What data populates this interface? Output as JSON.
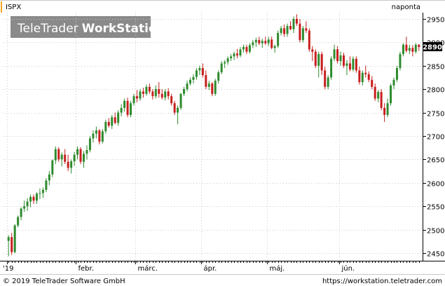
{
  "chart_data": {
    "type": "candlestick",
    "symbol": "ISPX",
    "period": "naponta",
    "watermark": "TeleTrader WorkStation",
    "watermark_parts": [
      "TeleTrader",
      "WorkStation"
    ],
    "last_value": "2890",
    "ylim": [
      2430,
      2980
    ],
    "y_ticks": [
      2450,
      2500,
      2550,
      2600,
      2650,
      2700,
      2750,
      2800,
      2850,
      2900,
      2950
    ],
    "x_tick_labels": [
      "'19",
      "febr.",
      "márc.",
      "ápr.",
      "máj.",
      "jún."
    ],
    "grid": true,
    "colors": {
      "up": "#2e8b2e",
      "down": "#c81e1e",
      "accent": "#f5a623",
      "period_text": "#2e8b2e",
      "symbol_text": "#2e8b2e"
    },
    "candles": [
      [
        2476,
        2488,
        2443,
        2484
      ],
      [
        2484,
        2493,
        2446,
        2452
      ],
      [
        2452,
        2512,
        2450,
        2509
      ],
      [
        2509,
        2530,
        2505,
        2527
      ],
      [
        2527,
        2548,
        2520,
        2545
      ],
      [
        2545,
        2562,
        2538,
        2550
      ],
      [
        2550,
        2567,
        2540,
        2560
      ],
      [
        2560,
        2575,
        2548,
        2570
      ],
      [
        2570,
        2575,
        2555,
        2562
      ],
      [
        2562,
        2580,
        2555,
        2577
      ],
      [
        2577,
        2588,
        2565,
        2578
      ],
      [
        2578,
        2590,
        2568,
        2585
      ],
      [
        2585,
        2610,
        2580,
        2605
      ],
      [
        2605,
        2625,
        2595,
        2618
      ],
      [
        2618,
        2650,
        2612,
        2648
      ],
      [
        2648,
        2678,
        2640,
        2672
      ],
      [
        2672,
        2676,
        2645,
        2650
      ],
      [
        2650,
        2665,
        2635,
        2660
      ],
      [
        2660,
        2672,
        2640,
        2645
      ],
      [
        2645,
        2660,
        2625,
        2632
      ],
      [
        2632,
        2650,
        2620,
        2646
      ],
      [
        2646,
        2666,
        2636,
        2660
      ],
      [
        2660,
        2678,
        2650,
        2672
      ],
      [
        2672,
        2676,
        2640,
        2645
      ],
      [
        2645,
        2668,
        2632,
        2662
      ],
      [
        2662,
        2680,
        2650,
        2670
      ],
      [
        2670,
        2700,
        2665,
        2695
      ],
      [
        2695,
        2712,
        2686,
        2705
      ],
      [
        2705,
        2720,
        2695,
        2712
      ],
      [
        2712,
        2715,
        2682,
        2688
      ],
      [
        2688,
        2715,
        2684,
        2710
      ],
      [
        2710,
        2735,
        2705,
        2730
      ],
      [
        2730,
        2738,
        2718,
        2722
      ],
      [
        2722,
        2745,
        2715,
        2740
      ],
      [
        2740,
        2750,
        2725,
        2728
      ],
      [
        2728,
        2755,
        2722,
        2750
      ],
      [
        2750,
        2768,
        2742,
        2760
      ],
      [
        2760,
        2780,
        2752,
        2775
      ],
      [
        2775,
        2782,
        2740,
        2745
      ],
      [
        2745,
        2775,
        2740,
        2770
      ],
      [
        2770,
        2790,
        2765,
        2785
      ],
      [
        2785,
        2798,
        2772,
        2780
      ],
      [
        2780,
        2800,
        2775,
        2795
      ],
      [
        2795,
        2803,
        2782,
        2790
      ],
      [
        2790,
        2810,
        2786,
        2805
      ],
      [
        2805,
        2812,
        2790,
        2795
      ],
      [
        2795,
        2800,
        2778,
        2785
      ],
      [
        2785,
        2808,
        2780,
        2800
      ],
      [
        2800,
        2815,
        2782,
        2790
      ],
      [
        2790,
        2800,
        2778,
        2782
      ],
      [
        2782,
        2800,
        2776,
        2795
      ],
      [
        2795,
        2802,
        2778,
        2785
      ],
      [
        2785,
        2790,
        2765,
        2770
      ],
      [
        2770,
        2775,
        2745,
        2750
      ],
      [
        2750,
        2765,
        2725,
        2760
      ],
      [
        2760,
        2792,
        2756,
        2790
      ],
      [
        2790,
        2805,
        2785,
        2800
      ],
      [
        2800,
        2818,
        2795,
        2812
      ],
      [
        2812,
        2825,
        2808,
        2820
      ],
      [
        2820,
        2832,
        2812,
        2826
      ],
      [
        2826,
        2845,
        2820,
        2840
      ],
      [
        2840,
        2850,
        2830,
        2845
      ],
      [
        2845,
        2855,
        2825,
        2830
      ],
      [
        2830,
        2840,
        2800,
        2805
      ],
      [
        2805,
        2818,
        2798,
        2812
      ],
      [
        2812,
        2815,
        2785,
        2790
      ],
      [
        2790,
        2822,
        2786,
        2818
      ],
      [
        2818,
        2840,
        2812,
        2836
      ],
      [
        2836,
        2860,
        2832,
        2855
      ],
      [
        2855,
        2862,
        2845,
        2858
      ],
      [
        2858,
        2870,
        2852,
        2866
      ],
      [
        2866,
        2875,
        2860,
        2870
      ],
      [
        2870,
        2880,
        2862,
        2876
      ],
      [
        2876,
        2886,
        2866,
        2872
      ],
      [
        2872,
        2890,
        2868,
        2885
      ],
      [
        2885,
        2895,
        2878,
        2890
      ],
      [
        2890,
        2895,
        2875,
        2880
      ],
      [
        2880,
        2898,
        2876,
        2894
      ],
      [
        2894,
        2905,
        2888,
        2900
      ],
      [
        2900,
        2910,
        2890,
        2905
      ],
      [
        2905,
        2912,
        2894,
        2898
      ],
      [
        2898,
        2908,
        2888,
        2903
      ],
      [
        2903,
        2912,
        2894,
        2898
      ],
      [
        2898,
        2912,
        2892,
        2906
      ],
      [
        2906,
        2912,
        2885,
        2888
      ],
      [
        2888,
        2895,
        2878,
        2892
      ],
      [
        2892,
        2925,
        2888,
        2920
      ],
      [
        2920,
        2935,
        2915,
        2930
      ],
      [
        2930,
        2938,
        2912,
        2918
      ],
      [
        2918,
        2940,
        2912,
        2935
      ],
      [
        2935,
        2945,
        2926,
        2928
      ],
      [
        2928,
        2955,
        2920,
        2950
      ],
      [
        2950,
        2960,
        2935,
        2940
      ],
      [
        2940,
        2950,
        2900,
        2905
      ],
      [
        2905,
        2935,
        2900,
        2930
      ],
      [
        2930,
        2945,
        2920,
        2925
      ],
      [
        2925,
        2930,
        2880,
        2885
      ],
      [
        2885,
        2892,
        2860,
        2880
      ],
      [
        2880,
        2885,
        2845,
        2850
      ],
      [
        2850,
        2880,
        2825,
        2875
      ],
      [
        2875,
        2880,
        2830,
        2840
      ],
      [
        2840,
        2848,
        2800,
        2805
      ],
      [
        2805,
        2830,
        2800,
        2825
      ],
      [
        2825,
        2870,
        2820,
        2865
      ],
      [
        2865,
        2895,
        2860,
        2885
      ],
      [
        2885,
        2892,
        2855,
        2860
      ],
      [
        2860,
        2880,
        2850,
        2872
      ],
      [
        2872,
        2878,
        2845,
        2850
      ],
      [
        2850,
        2862,
        2830,
        2855
      ],
      [
        2855,
        2870,
        2838,
        2842
      ],
      [
        2842,
        2870,
        2838,
        2865
      ],
      [
        2865,
        2870,
        2835,
        2840
      ],
      [
        2840,
        2848,
        2810,
        2815
      ],
      [
        2815,
        2840,
        2808,
        2835
      ],
      [
        2835,
        2850,
        2825,
        2832
      ],
      [
        2832,
        2838,
        2815,
        2820
      ],
      [
        2820,
        2828,
        2800,
        2805
      ],
      [
        2805,
        2812,
        2775,
        2780
      ],
      [
        2780,
        2798,
        2772,
        2794
      ],
      [
        2794,
        2800,
        2755,
        2760
      ],
      [
        2760,
        2770,
        2730,
        2745
      ],
      [
        2745,
        2780,
        2740,
        2770
      ],
      [
        2770,
        2812,
        2765,
        2808
      ],
      [
        2808,
        2825,
        2800,
        2820
      ],
      [
        2820,
        2850,
        2815,
        2845
      ],
      [
        2845,
        2880,
        2840,
        2875
      ],
      [
        2875,
        2898,
        2870,
        2895
      ],
      [
        2895,
        2912,
        2878,
        2882
      ],
      [
        2882,
        2895,
        2875,
        2888
      ],
      [
        2888,
        2894,
        2870,
        2880
      ],
      [
        2880,
        2898,
        2876,
        2895
      ],
      [
        2895,
        2896,
        2882,
        2890
      ]
    ]
  }
}
